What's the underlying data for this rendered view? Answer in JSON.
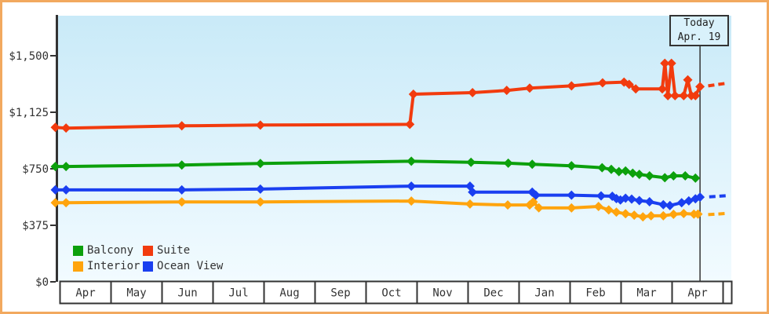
{
  "colors": {
    "frame": "#f2a95f",
    "axis": "#333333",
    "plot_top": "#c9eaf8",
    "plot_bottom": "#f2fbff",
    "today_box_bg": "#d9f1fb",
    "month_cell_bg": "#ffffff"
  },
  "today_marker": {
    "line1": "Today",
    "line2": "Apr. 19",
    "x": 12.54
  },
  "legend": {
    "items": [
      {
        "label": "Balcony",
        "color": "#0ca00c"
      },
      {
        "label": "Suite",
        "color": "#f23b0e"
      },
      {
        "label": "Interior",
        "color": "#ffa40d"
      },
      {
        "label": "Ocean View",
        "color": "#1a3ff0"
      }
    ]
  },
  "chart_data": {
    "type": "line",
    "x_unit": "months since first Apr tick (0 = Apr, 12 = following Apr)",
    "x_axis": {
      "months": [
        "Apr",
        "May",
        "Jun",
        "Jul",
        "Aug",
        "Sep",
        "Oct",
        "Nov",
        "Dec",
        "Jan",
        "Feb",
        "Mar",
        "Apr"
      ]
    },
    "y_axis": {
      "ticks": [
        {
          "label": "$0",
          "value": 0
        },
        {
          "label": "$375",
          "value": 375
        },
        {
          "label": "$750",
          "value": 750
        },
        {
          "label": "$1,125",
          "value": 1125
        },
        {
          "label": "$1,500",
          "value": 1500
        }
      ],
      "range": [
        0,
        1560
      ]
    },
    "grid": false,
    "series": [
      {
        "name": "Suite",
        "color": "#f23b0e",
        "points": [
          [
            -0.1,
            1025
          ],
          [
            0.11,
            1020
          ],
          [
            2.38,
            1035
          ],
          [
            3.92,
            1040
          ],
          [
            6.85,
            1045
          ],
          [
            6.92,
            1245
          ],
          [
            8.08,
            1255
          ],
          [
            8.75,
            1270
          ],
          [
            9.2,
            1285
          ],
          [
            10.02,
            1300
          ],
          [
            10.63,
            1320
          ],
          [
            11.05,
            1325
          ],
          [
            11.15,
            1310
          ],
          [
            11.28,
            1280
          ],
          [
            11.8,
            1280
          ],
          [
            11.85,
            1450
          ],
          [
            11.91,
            1235
          ],
          [
            11.98,
            1450
          ],
          [
            12.05,
            1235
          ],
          [
            12.22,
            1235
          ],
          [
            12.3,
            1340
          ],
          [
            12.37,
            1235
          ],
          [
            12.45,
            1235
          ],
          [
            12.54,
            1295
          ]
        ],
        "forecast": [
          [
            12.7,
            1300
          ],
          [
            12.9,
            1310
          ],
          [
            13.08,
            1318
          ]
        ]
      },
      {
        "name": "Balcony",
        "color": "#0ca00c",
        "points": [
          [
            -0.1,
            765
          ],
          [
            0.11,
            765
          ],
          [
            2.38,
            775
          ],
          [
            3.92,
            785
          ],
          [
            6.88,
            800
          ],
          [
            8.05,
            793
          ],
          [
            8.78,
            787
          ],
          [
            9.25,
            780
          ],
          [
            10.02,
            770
          ],
          [
            10.62,
            757
          ],
          [
            10.8,
            746
          ],
          [
            10.95,
            731
          ],
          [
            11.08,
            736
          ],
          [
            11.22,
            721
          ],
          [
            11.35,
            713
          ],
          [
            11.55,
            703
          ],
          [
            11.85,
            691
          ],
          [
            12.02,
            703
          ],
          [
            12.25,
            703
          ],
          [
            12.45,
            688
          ]
        ],
        "forecast": []
      },
      {
        "name": "Ocean View",
        "color": "#1a3ff0",
        "points": [
          [
            -0.1,
            610
          ],
          [
            0.11,
            610
          ],
          [
            2.38,
            610
          ],
          [
            3.92,
            615
          ],
          [
            6.88,
            635
          ],
          [
            8.03,
            635
          ],
          [
            8.08,
            595
          ],
          [
            9.25,
            595
          ],
          [
            9.32,
            575
          ],
          [
            10.02,
            575
          ],
          [
            10.6,
            570
          ],
          [
            10.82,
            568
          ],
          [
            10.9,
            552
          ],
          [
            10.98,
            543
          ],
          [
            11.08,
            555
          ],
          [
            11.2,
            549
          ],
          [
            11.35,
            539
          ],
          [
            11.55,
            531
          ],
          [
            11.82,
            512
          ],
          [
            11.95,
            506
          ],
          [
            12.18,
            525
          ],
          [
            12.32,
            537
          ],
          [
            12.45,
            551
          ],
          [
            12.54,
            562
          ]
        ],
        "forecast": [
          [
            12.72,
            564
          ],
          [
            12.92,
            568
          ],
          [
            13.08,
            572
          ]
        ]
      },
      {
        "name": "Interior",
        "color": "#ffa40d",
        "points": [
          [
            -0.1,
            525
          ],
          [
            0.11,
            525
          ],
          [
            2.38,
            530
          ],
          [
            3.92,
            530
          ],
          [
            6.88,
            536
          ],
          [
            8.03,
            516
          ],
          [
            8.77,
            510
          ],
          [
            9.2,
            510
          ],
          [
            9.27,
            530
          ],
          [
            9.38,
            491
          ],
          [
            10.02,
            490
          ],
          [
            10.55,
            500
          ],
          [
            10.75,
            477
          ],
          [
            10.9,
            462
          ],
          [
            11.08,
            452
          ],
          [
            11.25,
            442
          ],
          [
            11.42,
            431
          ],
          [
            11.58,
            438
          ],
          [
            11.82,
            438
          ],
          [
            12.02,
            448
          ],
          [
            12.22,
            453
          ],
          [
            12.42,
            449
          ],
          [
            12.5,
            449
          ]
        ],
        "forecast": [
          [
            12.7,
            446
          ],
          [
            12.9,
            450
          ],
          [
            13.08,
            454
          ]
        ]
      }
    ]
  }
}
